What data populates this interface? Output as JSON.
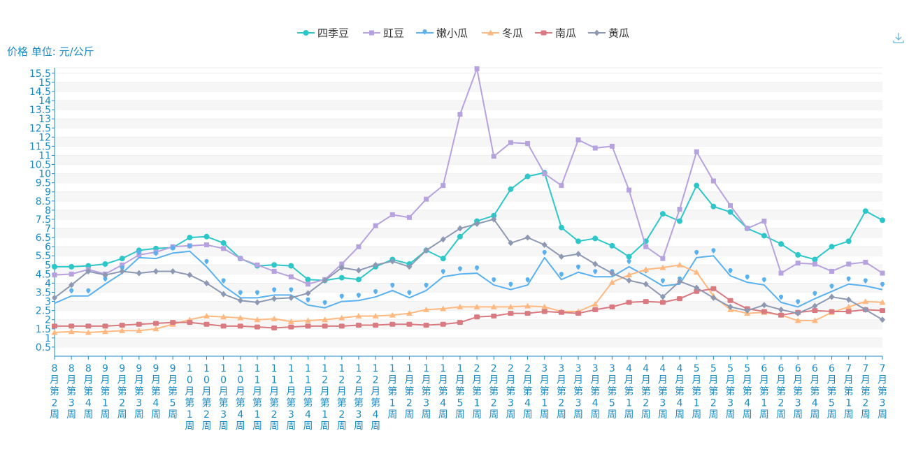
{
  "ylabel": "价格 单位: 元/公斤",
  "chart_data": {
    "type": "line",
    "ylabel": "价格 单位: 元/公斤",
    "ylim": [
      0,
      15.8
    ],
    "yticks": [
      0.5,
      1,
      1.5,
      2,
      2.5,
      3,
      3.5,
      4,
      4.5,
      5,
      5.5,
      6,
      6.5,
      7,
      7.5,
      8,
      8.5,
      9,
      9.5,
      10,
      10.5,
      11,
      11.5,
      12,
      12.5,
      13,
      13.5,
      14,
      14.5,
      15,
      15.5
    ],
    "categories": [
      "8月第2周",
      "8月第3周",
      "8月第4周",
      "9月第1周",
      "9月第2周",
      "9月第3周",
      "9月第4周",
      "9月第5周",
      "10月第1周",
      "10月第2周",
      "10月第3周",
      "10月第4周",
      "11月第1周",
      "11月第2周",
      "11月第3周",
      "11月第4周",
      "12月第1周",
      "12月第2周",
      "12月第3周",
      "12月第4周",
      "1月第1周",
      "1月第2周",
      "1月第3周",
      "1月第4周",
      "1月第5周",
      "2月第1周",
      "2月第2周",
      "2月第3周",
      "2月第4周",
      "3月第1周",
      "3月第2周",
      "3月第3周",
      "3月第4周",
      "3月第5周",
      "4月第1周",
      "4月第2周",
      "4月第3周",
      "4月第4周",
      "5月第1周",
      "5月第2周",
      "5月第3周",
      "5月第4周",
      "6月第1周",
      "6月第2周",
      "6月第3周",
      "6月第4周",
      "6月第5周",
      "7月第1周",
      "7月第2周",
      "7月第3周"
    ],
    "legend_position": "top-center",
    "grid": true,
    "series": [
      {
        "name": "四季豆",
        "color": "#2ec7c9",
        "marker": "circle",
        "values": [
          4.9,
          4.9,
          4.95,
          5.05,
          5.35,
          5.8,
          5.9,
          5.95,
          6.5,
          6.55,
          6.2,
          5.35,
          4.95,
          5.0,
          4.95,
          4.2,
          4.15,
          4.3,
          4.2,
          4.9,
          5.3,
          5.05,
          5.8,
          5.35,
          6.55,
          7.4,
          7.7,
          9.15,
          9.85,
          10.05,
          7.05,
          6.3,
          6.45,
          6.05,
          5.45,
          6.3,
          7.8,
          7.4,
          9.35,
          8.2,
          7.9,
          7.0,
          6.6,
          6.15,
          5.55,
          5.3,
          6.0,
          6.3,
          7.95,
          7.45
        ]
      },
      {
        "name": "豇豆",
        "color": "#b6a2de",
        "marker": "square",
        "values": [
          4.45,
          4.5,
          4.75,
          4.5,
          5.0,
          5.55,
          5.7,
          6.0,
          6.05,
          6.1,
          5.9,
          5.35,
          5.0,
          4.65,
          4.35,
          3.95,
          4.2,
          5.05,
          6.0,
          7.15,
          7.75,
          7.6,
          8.6,
          9.35,
          13.25,
          15.75,
          10.95,
          11.7,
          11.65,
          10.0,
          9.35,
          11.85,
          11.4,
          11.5,
          9.1,
          6.0,
          5.35,
          8.05,
          11.2,
          9.6,
          8.25,
          7.0,
          7.4,
          4.55,
          5.1,
          5.05,
          4.65,
          5.05,
          5.15,
          4.55
        ]
      },
      {
        "name": "嫩小瓜",
        "color": "#5ab1ef",
        "marker": "pin",
        "values": [
          2.9,
          3.3,
          3.3,
          3.95,
          4.55,
          5.4,
          5.35,
          5.65,
          5.75,
          4.9,
          3.85,
          3.2,
          3.2,
          3.35,
          3.35,
          2.8,
          2.65,
          3.0,
          3.05,
          3.25,
          3.6,
          3.2,
          3.6,
          4.35,
          4.5,
          4.55,
          3.9,
          3.65,
          3.9,
          5.4,
          4.2,
          4.6,
          4.35,
          4.35,
          4.9,
          4.4,
          3.85,
          3.95,
          5.4,
          5.5,
          4.4,
          4.05,
          3.9,
          2.95,
          2.7,
          3.15,
          3.55,
          3.95,
          3.85,
          3.65
        ]
      },
      {
        "name": "冬瓜",
        "color": "#ffb980",
        "marker": "triangle",
        "values": [
          1.3,
          1.35,
          1.3,
          1.35,
          1.4,
          1.4,
          1.5,
          1.75,
          2.0,
          2.2,
          2.15,
          2.1,
          2.0,
          2.05,
          1.9,
          1.95,
          2.0,
          2.1,
          2.2,
          2.2,
          2.25,
          2.35,
          2.55,
          2.6,
          2.7,
          2.7,
          2.7,
          2.7,
          2.75,
          2.7,
          2.45,
          2.45,
          2.85,
          4.05,
          4.45,
          4.75,
          4.85,
          5.0,
          4.6,
          3.3,
          2.55,
          2.35,
          2.4,
          2.25,
          1.95,
          1.95,
          2.4,
          2.7,
          3.0,
          2.95
        ]
      },
      {
        "name": "南瓜",
        "color": "#d87a80",
        "marker": "rect",
        "values": [
          1.65,
          1.65,
          1.65,
          1.65,
          1.7,
          1.75,
          1.8,
          1.85,
          1.85,
          1.75,
          1.65,
          1.65,
          1.6,
          1.55,
          1.6,
          1.65,
          1.65,
          1.65,
          1.7,
          1.7,
          1.75,
          1.75,
          1.7,
          1.75,
          1.85,
          2.15,
          2.2,
          2.35,
          2.35,
          2.45,
          2.4,
          2.35,
          2.55,
          2.7,
          2.95,
          3.0,
          2.95,
          3.15,
          3.55,
          3.7,
          3.05,
          2.6,
          2.45,
          2.25,
          2.4,
          2.5,
          2.45,
          2.45,
          2.55,
          2.5
        ]
      },
      {
        "name": "黄瓜",
        "color": "#8d98b3",
        "marker": "diamond",
        "values": [
          3.2,
          3.9,
          4.65,
          4.45,
          4.65,
          4.55,
          4.65,
          4.65,
          4.45,
          4.0,
          3.4,
          3.05,
          2.95,
          3.15,
          3.2,
          3.45,
          4.15,
          4.85,
          4.7,
          5.0,
          5.2,
          4.9,
          5.8,
          6.4,
          7.0,
          7.25,
          7.5,
          6.2,
          6.5,
          6.1,
          5.45,
          5.6,
          5.05,
          4.55,
          4.15,
          3.95,
          3.25,
          4.1,
          3.75,
          3.2,
          2.7,
          2.5,
          2.8,
          2.55,
          2.35,
          2.75,
          3.25,
          3.1,
          2.55,
          2.0
        ]
      }
    ]
  }
}
